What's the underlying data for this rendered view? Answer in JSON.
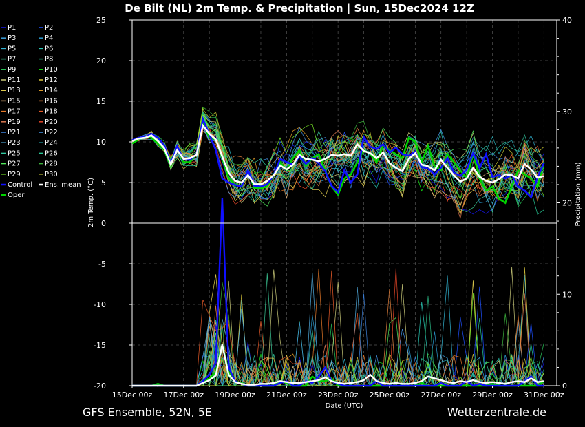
{
  "chart_data": {
    "type": "line",
    "title": "De Bilt  (NL)  2m Temp. & Precipitation | Sun, 15Dec2024 12Z",
    "xlabel": "Date (UTC)",
    "ylabel": "2m Temp. (°C)",
    "y2label": "Precipitation (mm)",
    "x_ticks": [
      "15Dec 00z",
      "17Dec 00z",
      "19Dec 00z",
      "21Dec 00z",
      "23Dec 00z",
      "25Dec 00z",
      "27Dec 00z",
      "29Dec 00z",
      "31Dec 00z"
    ],
    "ylim": [
      -20,
      25
    ],
    "y_ticks": [
      -20,
      -15,
      -10,
      -5,
      0,
      5,
      10,
      15,
      20,
      25
    ],
    "y2lim": [
      0,
      40
    ],
    "y2_ticks": [
      0,
      10,
      20,
      30,
      40
    ],
    "x_range_days": [
      0,
      16.5
    ],
    "x_step_hours": 6,
    "grid": true,
    "legend_position": "left",
    "footer_left": "GFS Ensemble, 52N, 5E",
    "footer_right": "Wetterzentrale.de",
    "highlight_series": {
      "control": {
        "name": "Control",
        "color": "#1010ff",
        "temp": [
          10.2,
          10.5,
          10.6,
          11.0,
          10.5,
          9.6,
          7.3,
          9.5,
          7.8,
          7.8,
          8.5,
          12.8,
          10.9,
          9.0,
          5.5,
          5.0,
          4.7,
          4.5,
          6.5,
          4.6,
          4.5,
          4.8,
          5.9,
          7.9,
          7.5,
          7.2,
          8.2,
          7.3,
          8.0,
          7.4,
          6.4,
          4.6,
          3.8,
          6.5,
          5.0,
          6.0,
          10.6,
          9.4,
          9.1,
          9.7,
          8.7,
          9.3,
          8.5,
          8.3,
          8.8,
          6.9,
          6.7,
          6.0,
          6.8,
          8.0,
          6.2,
          5.8,
          6.6,
          8.6,
          6.8,
          8.5,
          5.7,
          5.9,
          5.5,
          6.0,
          4.5,
          4.0,
          3.2,
          5.6,
          7.4
        ],
        "precip": [
          0,
          0,
          0,
          0,
          0,
          0,
          0,
          0,
          0,
          0,
          0,
          0.5,
          1.2,
          2.5,
          20.5,
          2.0,
          0.5,
          0.2,
          0,
          0,
          0,
          0,
          0,
          0.3,
          0.5,
          0,
          0,
          0.5,
          0.3,
          1.0,
          2.0,
          0.5,
          0.2,
          0,
          0,
          0,
          0,
          0,
          0.5,
          0,
          0,
          0,
          0,
          0,
          0,
          0,
          0,
          0,
          0.3,
          0,
          0,
          0,
          0.5,
          0,
          0.2,
          0,
          0,
          0,
          0,
          0,
          0,
          0.5,
          1.0,
          0,
          0
        ]
      },
      "oper": {
        "name": "Oper",
        "color": "#00d400",
        "temp": [
          9.8,
          10.3,
          10.6,
          10.5,
          9.8,
          9.0,
          7.0,
          9.5,
          7.5,
          7.5,
          8.5,
          12.5,
          10.5,
          10.3,
          8.0,
          5.5,
          4.8,
          4.5,
          6.5,
          4.3,
          4.3,
          4.5,
          6.0,
          7.5,
          6.5,
          8.0,
          9.0,
          7.0,
          8.0,
          8.5,
          6.5,
          4.5,
          3.5,
          5.5,
          6.0,
          7.5,
          9.0,
          8.5,
          7.5,
          9.5,
          9.0,
          8.5,
          8.0,
          10.5,
          10.0,
          7.5,
          9.5,
          7.0,
          6.5,
          8.5,
          7.5,
          6.5,
          5.5,
          8.5,
          5.5,
          4.0,
          4.5,
          3.0,
          2.5,
          4.5,
          6.5,
          6.0,
          5.5,
          4.5,
          7.5
        ],
        "precip": [
          0,
          0,
          0,
          0,
          0.2,
          0,
          0,
          0,
          0,
          0,
          0,
          0.3,
          0.8,
          1.5,
          4.5,
          1.5,
          0.5,
          0.3,
          0,
          0,
          0,
          0,
          0,
          0.5,
          0.3,
          0,
          0,
          0,
          1.0,
          0.5,
          0.5,
          0.8,
          0,
          0,
          0,
          0,
          0,
          0,
          0,
          0,
          0,
          0,
          0,
          0,
          0,
          0.3,
          0,
          0,
          0,
          0,
          0,
          0,
          0,
          0,
          0,
          0,
          0.2,
          0,
          0,
          0,
          0,
          0,
          0,
          0,
          0.5
        ]
      },
      "ens_mean": {
        "name": "Ens. mean",
        "color": "#ffffff",
        "temp": [
          10.1,
          10.4,
          10.5,
          10.8,
          10.1,
          9.2,
          7.2,
          9.0,
          7.9,
          8.0,
          8.4,
          12.0,
          11.0,
          10.3,
          8.2,
          6.2,
          5.2,
          5.0,
          5.9,
          4.8,
          4.8,
          5.2,
          5.9,
          7.1,
          6.6,
          7.2,
          8.4,
          7.9,
          7.8,
          7.6,
          7.9,
          8.4,
          8.3,
          8.5,
          8.3,
          9.7,
          8.9,
          8.6,
          8.0,
          8.7,
          7.4,
          6.8,
          6.4,
          7.9,
          8.6,
          7.2,
          7.0,
          6.5,
          7.8,
          6.8,
          5.9,
          5.1,
          5.5,
          6.8,
          5.7,
          5.2,
          5.0,
          5.4,
          6.0,
          5.9,
          5.5,
          7.3,
          6.6,
          5.6,
          5.8
        ],
        "precip": [
          0,
          0,
          0,
          0,
          0,
          0,
          0,
          0,
          0,
          0,
          0,
          0.3,
          0.6,
          1.1,
          4.5,
          1.2,
          0.4,
          0.2,
          0.1,
          0.1,
          0.2,
          0.2,
          0.3,
          0.5,
          0.4,
          0.3,
          0.3,
          0.4,
          0.5,
          0.6,
          0.9,
          0.5,
          0.3,
          0.2,
          0.3,
          0.4,
          0.6,
          1.2,
          0.5,
          0.3,
          0.2,
          0.3,
          0.2,
          0.2,
          0.3,
          0.5,
          1.0,
          0.8,
          0.6,
          0.4,
          0.3,
          0.5,
          0.4,
          0.6,
          0.4,
          0.3,
          0.4,
          0.3,
          0.2,
          0.4,
          0.5,
          0.4,
          0.8,
          0.4,
          0.5
        ]
      }
    },
    "series": [
      {
        "name": "P1",
        "color": "#1515e6"
      },
      {
        "name": "P2",
        "color": "#1e50ff"
      },
      {
        "name": "P3",
        "color": "#3ca0dc"
      },
      {
        "name": "P4",
        "color": "#2a9bd0"
      },
      {
        "name": "P5",
        "color": "#32b4d2"
      },
      {
        "name": "P6",
        "color": "#28c8b4"
      },
      {
        "name": "P7",
        "color": "#3cc896"
      },
      {
        "name": "P8",
        "color": "#2ab482"
      },
      {
        "name": "P9",
        "color": "#28c85a"
      },
      {
        "name": "P10",
        "color": "#14dc14"
      },
      {
        "name": "P11",
        "color": "#c8c878"
      },
      {
        "name": "P12",
        "color": "#dcc83c"
      },
      {
        "name": "P13",
        "color": "#e6d250"
      },
      {
        "name": "P14",
        "color": "#e6a028"
      },
      {
        "name": "P15",
        "color": "#e6b478"
      },
      {
        "name": "P16",
        "color": "#e6823c"
      },
      {
        "name": "P17",
        "color": "#e67828"
      },
      {
        "name": "P18",
        "color": "#e65a28"
      },
      {
        "name": "P19",
        "color": "#dc7850"
      },
      {
        "name": "P20",
        "color": "#e64628"
      },
      {
        "name": "P21",
        "color": "#3c82dc"
      },
      {
        "name": "P22",
        "color": "#4696e6"
      },
      {
        "name": "P23",
        "color": "#50aadc"
      },
      {
        "name": "P24",
        "color": "#28aab4"
      },
      {
        "name": "P25",
        "color": "#32c8a0"
      },
      {
        "name": "P26",
        "color": "#28c896"
      },
      {
        "name": "P27",
        "color": "#50e65a"
      },
      {
        "name": "P28",
        "color": "#3cb43c"
      },
      {
        "name": "P29",
        "color": "#78e628"
      },
      {
        "name": "P30",
        "color": "#c8c832"
      }
    ]
  }
}
